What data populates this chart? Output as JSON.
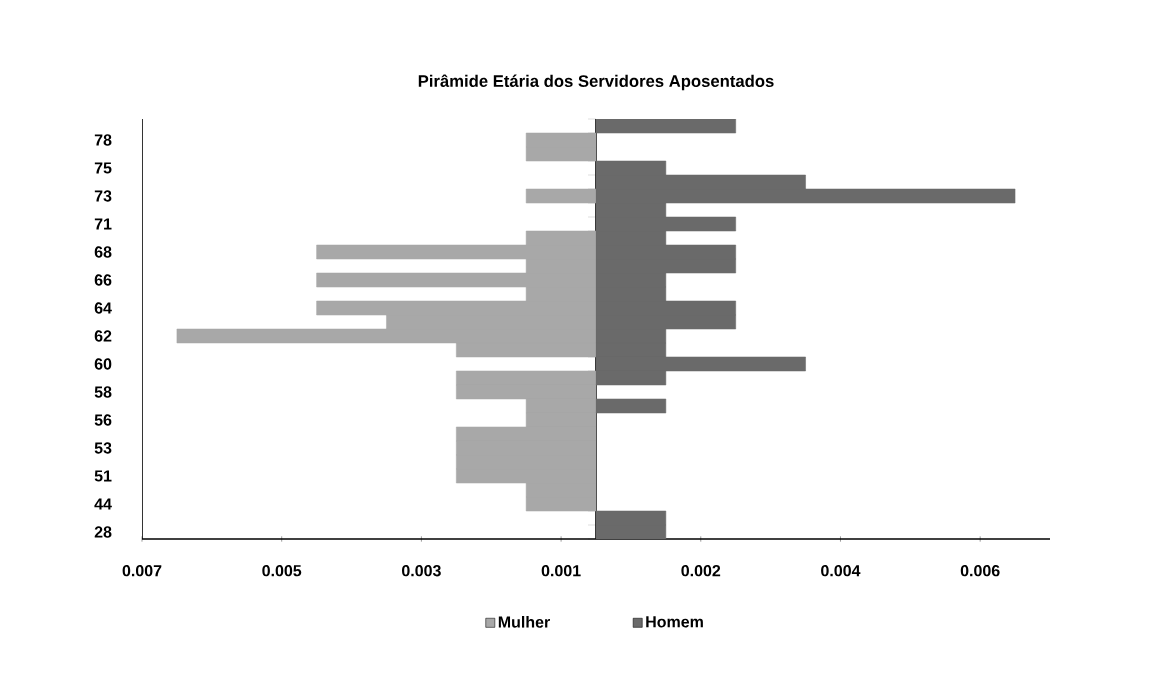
{
  "chart_data": {
    "type": "bar",
    "orientation": "horizontal",
    "title": "Pirâmide Etária dos Servidores Aposentados",
    "categories": [
      null,
      "78",
      null,
      "75",
      null,
      "73",
      null,
      "71",
      null,
      "68",
      null,
      "66",
      null,
      "64",
      null,
      "62",
      null,
      "60",
      null,
      "58",
      null,
      "56",
      null,
      "53",
      null,
      "51",
      null,
      "44",
      null,
      "28"
    ],
    "series": [
      {
        "name": "Mulher",
        "color": "#a8a8a8",
        "values": [
          null,
          -0.001,
          -0.001,
          null,
          null,
          -0.001,
          null,
          null,
          -0.001,
          -0.004,
          -0.001,
          -0.004,
          -0.001,
          -0.004,
          -0.003,
          -0.006,
          -0.002,
          null,
          -0.002,
          -0.002,
          -0.001,
          -0.001,
          -0.002,
          -0.002,
          -0.002,
          -0.002,
          -0.001,
          -0.001,
          null,
          null
        ]
      },
      {
        "name": "Homem",
        "color": "#6a6a6a",
        "values": [
          0.002,
          null,
          null,
          0.001,
          0.003,
          0.006,
          0.001,
          0.002,
          0.001,
          0.002,
          0.002,
          0.001,
          0.001,
          0.002,
          0.002,
          0.001,
          0.001,
          0.003,
          0.001,
          null,
          0.001,
          null,
          null,
          null,
          null,
          null,
          null,
          null,
          0.001,
          0.001
        ]
      }
    ],
    "xlim": [
      -0.0065,
      0.0065
    ],
    "xticks": [
      {
        "value": -0.0065,
        "label": "0.007"
      },
      {
        "value": -0.0045,
        "label": "0.005"
      },
      {
        "value": -0.0025,
        "label": "0.003"
      },
      {
        "value": -0.0005,
        "label": "0.001"
      },
      {
        "value": 0.0015,
        "label": "0.002"
      },
      {
        "value": 0.0035,
        "label": "0.004"
      },
      {
        "value": 0.0055,
        "label": "0.006"
      }
    ],
    "legend": "bottom"
  }
}
